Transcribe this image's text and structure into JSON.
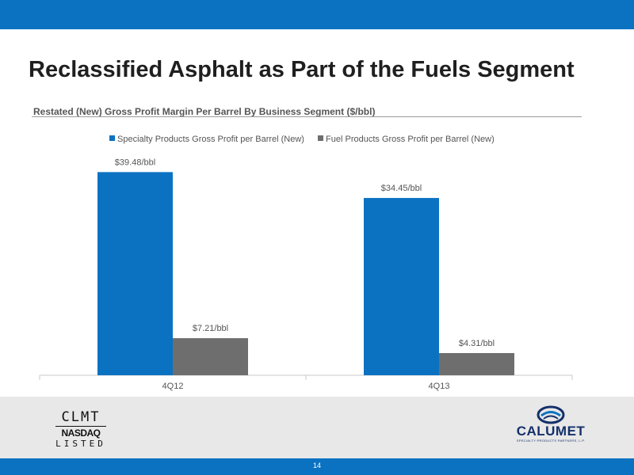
{
  "slide": {
    "title": "Reclassified Asphalt as Part of the Fuels Segment",
    "page_number": "14"
  },
  "chart_data": {
    "type": "bar",
    "title": "Restated (New) Gross Profit Margin Per Barrel By Business Segment ($/bbl)",
    "categories": [
      "4Q12",
      "4Q13"
    ],
    "series": [
      {
        "name": "Specialty Products Gross Profit per Barrel (New)",
        "values": [
          39.48,
          34.45
        ],
        "labels": [
          "$39.48/bbl",
          "$34.45/bbl"
        ],
        "color": "#0b72c2"
      },
      {
        "name": "Fuel Products Gross Profit per Barrel (New)",
        "values": [
          7.21,
          4.31
        ],
        "labels": [
          "$7.21/bbl",
          "$4.31/bbl"
        ],
        "color": "#6e6e6e"
      }
    ],
    "ylim": [
      0,
      40
    ],
    "legend": "top",
    "grid": false,
    "xlabel": "",
    "ylabel": ""
  },
  "logos": {
    "clmt": {
      "ticker": "CLMT",
      "exchange": "NASDAQ",
      "listed": "LISTED"
    },
    "calumet": {
      "name": "CALUMET",
      "tagline": "SPECIALTY PRODUCTS PARTNERS, L.P.",
      "color": "#14306a"
    }
  },
  "theme": {
    "brand_blue": "#0b72c2",
    "fuel_gray": "#6e6e6e",
    "footer_gray": "#e8e8e8"
  }
}
